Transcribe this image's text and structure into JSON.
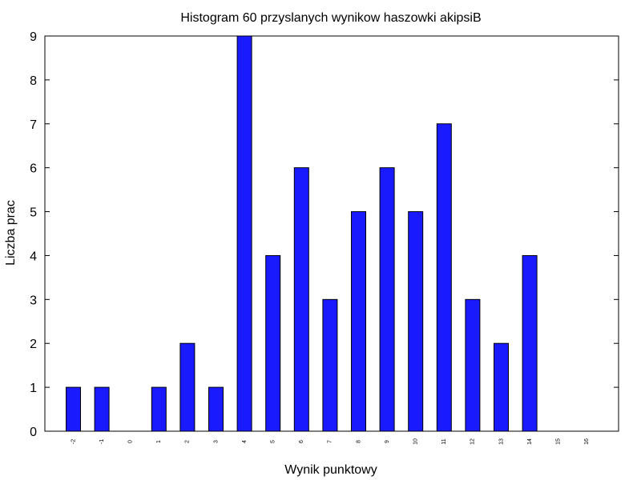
{
  "chart_data": {
    "type": "bar",
    "title": "Histogram 60 przyslanych wynikow haszowki akipsiB",
    "xlabel": "Wynik punktowy",
    "ylabel": "Liczba prac",
    "categories": [
      "-2",
      "-1",
      "0",
      "1",
      "2",
      "3",
      "4",
      "5",
      "6",
      "7",
      "8",
      "9",
      "10",
      "11",
      "12",
      "13",
      "14",
      "15",
      "16"
    ],
    "values": [
      1,
      1,
      0,
      1,
      2,
      1,
      9,
      4,
      6,
      3,
      5,
      6,
      5,
      7,
      3,
      2,
      4,
      0,
      0
    ],
    "ylim": [
      0,
      9
    ],
    "yticks": [
      "0",
      "1",
      "2",
      "3",
      "4",
      "5",
      "6",
      "7",
      "8",
      "9"
    ],
    "grid": false,
    "colors": {
      "bar": "#1a1aff",
      "stroke": "#000000"
    }
  }
}
